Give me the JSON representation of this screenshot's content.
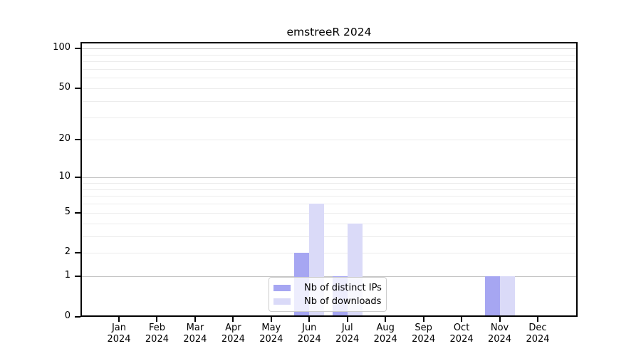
{
  "chart_data": {
    "type": "bar",
    "title": "emstreeR 2024",
    "categories": [
      "Jan",
      "Feb",
      "Mar",
      "Apr",
      "May",
      "Jun",
      "Jul",
      "Aug",
      "Sep",
      "Oct",
      "Nov",
      "Dec"
    ],
    "year_label": "2024",
    "series": [
      {
        "name": "Nb of distinct IPs",
        "color": "#a6a6f2",
        "values": [
          0,
          0,
          0,
          0,
          0,
          2,
          1,
          0,
          0,
          0,
          1,
          0
        ]
      },
      {
        "name": "Nb of downloads",
        "color": "#dadaf8",
        "values": [
          0,
          0,
          0,
          0,
          0,
          6,
          4,
          0,
          0,
          0,
          1,
          0
        ]
      }
    ],
    "xlabel": "",
    "ylabel": "",
    "yaxis": {
      "scale": "log1p",
      "ylim": [
        0,
        111.8
      ],
      "tick_labels": [
        100,
        50,
        20,
        10,
        5,
        2,
        1,
        0
      ],
      "major_gridlines": [
        1,
        10,
        100
      ],
      "minor_gridlines": [
        2,
        3,
        4,
        5,
        6,
        7,
        8,
        9,
        20,
        30,
        40,
        50,
        60,
        70,
        80,
        90
      ]
    },
    "legend": {
      "position": "lower center",
      "frame": true
    }
  },
  "colors": {
    "background": "#ffffff",
    "bar_distinct_ips": "#a6a6f2",
    "bar_downloads": "#dadaf8",
    "major_grid": "#c3c3c3",
    "minor_grid": "#ececec",
    "spine": "#000000",
    "tick": "#000000",
    "text": "#000000",
    "legend_border": "#cccccc"
  }
}
